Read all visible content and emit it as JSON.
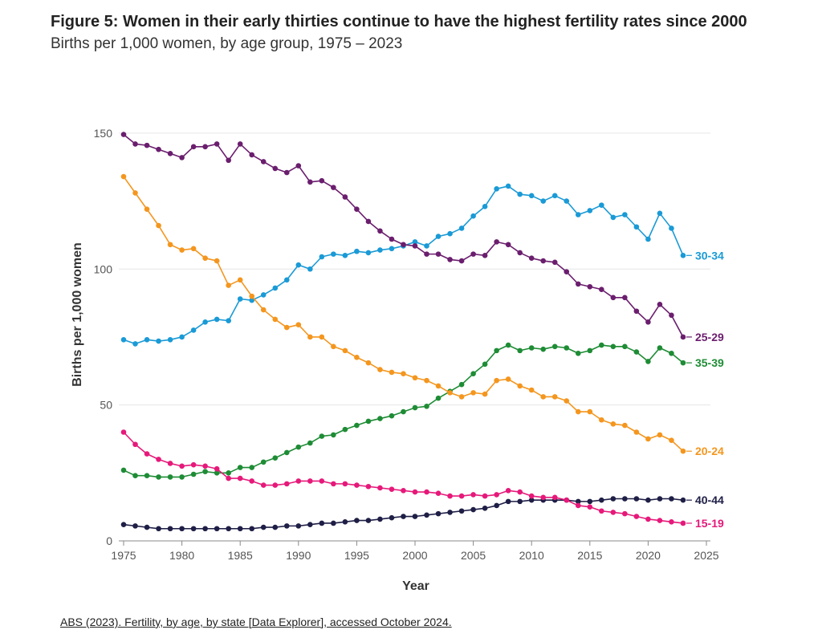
{
  "title": "Figure 5: Women in their early thirties continue to have the highest fertility rates since 2000",
  "subtitle": "Births per 1,000 women, by age group, 1975 – 2023",
  "source": "ABS (2023). Fertility, by age, by state [Data Explorer], accessed October 2024.",
  "chart_data": {
    "type": "line",
    "xlabel": "Year",
    "ylabel": "Births per 1,000 women",
    "xlim": [
      1975,
      2025
    ],
    "ylim": [
      0,
      160
    ],
    "xticks": [
      1975,
      1980,
      1985,
      1990,
      1995,
      2000,
      2005,
      2010,
      2015,
      2020,
      2025
    ],
    "yticks": [
      0,
      50,
      100,
      150
    ],
    "grid": "horizontal",
    "legend": "direct labels at line ends (right)",
    "x": [
      1975,
      1976,
      1977,
      1978,
      1979,
      1980,
      1981,
      1982,
      1983,
      1984,
      1985,
      1986,
      1987,
      1988,
      1989,
      1990,
      1991,
      1992,
      1993,
      1994,
      1995,
      1996,
      1997,
      1998,
      1999,
      2000,
      2001,
      2002,
      2003,
      2004,
      2005,
      2006,
      2007,
      2008,
      2009,
      2010,
      2011,
      2012,
      2013,
      2014,
      2015,
      2016,
      2017,
      2018,
      2019,
      2020,
      2021,
      2022,
      2023
    ],
    "series": [
      {
        "name": "30-34",
        "color": "#1a9ad6",
        "values": [
          74,
          72.5,
          74,
          73.5,
          74,
          75,
          77.5,
          80.5,
          81.5,
          81,
          89,
          88.5,
          90.5,
          93,
          96,
          101.5,
          100,
          104.5,
          105.5,
          105,
          106.5,
          106,
          107,
          107.5,
          108.5,
          110,
          108.5,
          112,
          113,
          115,
          119.5,
          123,
          129.5,
          130.5,
          127.5,
          127,
          125,
          127,
          125,
          120,
          121.5,
          123.5,
          119,
          120,
          115.5,
          111,
          120.5,
          115,
          105
        ]
      },
      {
        "name": "25-29",
        "color": "#6b1e6e",
        "values": [
          149.5,
          146,
          145.5,
          144,
          142.5,
          141,
          145,
          145,
          146,
          140,
          146,
          142,
          139.5,
          137,
          135.5,
          138,
          132,
          132.5,
          130,
          126.5,
          122,
          117.5,
          114,
          111,
          109,
          108.5,
          105.5,
          105.5,
          103.5,
          103,
          105.5,
          105,
          110,
          109,
          106,
          104,
          103,
          102.5,
          99,
          94.5,
          93.5,
          92.5,
          89.5,
          89.5,
          84.5,
          80.5,
          87,
          83,
          75
        ]
      },
      {
        "name": "35-39",
        "color": "#1e8c35",
        "values": [
          26,
          24,
          24,
          23.5,
          23.5,
          23.5,
          24.5,
          25.5,
          25,
          25,
          27,
          27,
          29,
          30.5,
          32.5,
          34.5,
          36,
          38.5,
          39,
          41,
          42.5,
          44,
          45,
          46,
          47.5,
          49,
          49.5,
          52.5,
          55,
          57.5,
          61.5,
          65,
          70,
          72,
          70,
          71,
          70.5,
          71.5,
          71,
          69,
          70,
          72,
          71.5,
          71.5,
          69.5,
          66,
          71,
          69,
          65.5
        ]
      },
      {
        "name": "20-24",
        "color": "#f4961e",
        "values": [
          134,
          128,
          122,
          116,
          109,
          107,
          107.5,
          104,
          103,
          94,
          96,
          90,
          85,
          81.5,
          78.5,
          79.5,
          75,
          75,
          71.5,
          70,
          67.5,
          65.5,
          63,
          62,
          61.5,
          60,
          59,
          57,
          54.5,
          53,
          54.5,
          54,
          59,
          59.5,
          57,
          55.5,
          53,
          53,
          51.5,
          47.5,
          47.5,
          44.5,
          43,
          42.5,
          40,
          37.5,
          39,
          37,
          33
        ]
      },
      {
        "name": "40-44",
        "color": "#1e1e46",
        "values": [
          6,
          5.5,
          5,
          4.5,
          4.5,
          4.5,
          4.5,
          4.5,
          4.5,
          4.5,
          4.5,
          4.5,
          5,
          5,
          5.5,
          5.5,
          6,
          6.5,
          6.5,
          7,
          7.5,
          7.5,
          8,
          8.5,
          9,
          9,
          9.5,
          10,
          10.5,
          11,
          11.5,
          12,
          13,
          14.5,
          14.5,
          15,
          15,
          15,
          15,
          14.5,
          14.5,
          15,
          15.5,
          15.5,
          15.5,
          15,
          15.5,
          15.5,
          15
        ]
      },
      {
        "name": "15-19",
        "color": "#e6197a",
        "values": [
          40,
          35.5,
          32,
          30,
          28.5,
          27.5,
          28,
          27.5,
          26.5,
          23,
          23,
          22,
          20.5,
          20.5,
          21,
          22,
          22,
          22,
          21,
          21,
          20.5,
          20,
          19.5,
          19,
          18.5,
          18,
          18,
          17.5,
          16.5,
          16.5,
          17,
          16.5,
          17,
          18.5,
          18,
          16.5,
          16,
          16,
          15,
          13,
          12.5,
          11,
          10.5,
          10,
          9,
          8,
          7.5,
          7,
          6.5
        ]
      }
    ]
  }
}
